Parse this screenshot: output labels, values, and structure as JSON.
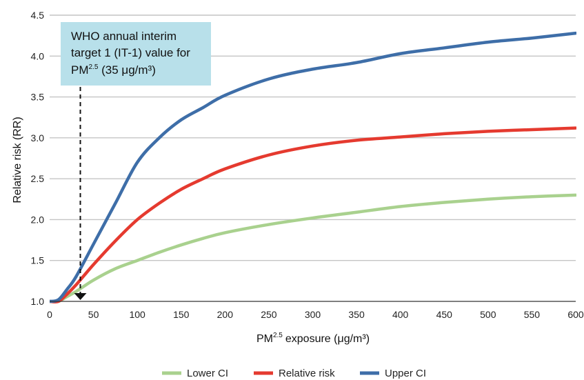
{
  "chart_data": {
    "type": "line",
    "title": "",
    "xlabel": "exposure (μg/m³)",
    "xlabel_prefix": "PM",
    "xlabel_sup": "2.5",
    "ylabel": "Relative risk (RR)",
    "xlim": [
      0,
      600
    ],
    "ylim": [
      1.0,
      4.5
    ],
    "xticks": [
      0,
      50,
      100,
      150,
      200,
      250,
      300,
      350,
      400,
      450,
      500,
      550,
      600
    ],
    "yticks": [
      1.0,
      1.5,
      2.0,
      2.5,
      3.0,
      3.5,
      4.0,
      4.5
    ],
    "xtick_labels": [
      "0",
      "50",
      "100",
      "150",
      "200",
      "250",
      "300",
      "350",
      "400",
      "450",
      "500",
      "550",
      "600"
    ],
    "ytick_labels": [
      "1.0",
      "1.5",
      "2.0",
      "2.5",
      "3.0",
      "3.5",
      "4.0",
      "4.5"
    ],
    "grid": "horizontal",
    "legend_position": "bottom",
    "series": [
      {
        "name": "Lower CI",
        "color": "#a9d18e",
        "x": [
          0,
          10,
          20,
          30,
          50,
          75,
          100,
          125,
          150,
          175,
          200,
          250,
          300,
          350,
          400,
          450,
          500,
          550,
          600
        ],
        "y": [
          1.0,
          1.0,
          1.06,
          1.12,
          1.26,
          1.4,
          1.5,
          1.6,
          1.69,
          1.77,
          1.84,
          1.94,
          2.02,
          2.09,
          2.16,
          2.21,
          2.25,
          2.28,
          2.3
        ]
      },
      {
        "name": "Relative risk",
        "color": "#e53a2f",
        "x": [
          0,
          10,
          20,
          30,
          50,
          75,
          100,
          125,
          150,
          175,
          200,
          250,
          300,
          350,
          400,
          450,
          500,
          550,
          600
        ],
        "y": [
          1.0,
          1.0,
          1.09,
          1.2,
          1.45,
          1.74,
          2.0,
          2.2,
          2.37,
          2.5,
          2.62,
          2.79,
          2.9,
          2.97,
          3.01,
          3.05,
          3.08,
          3.1,
          3.12
        ]
      },
      {
        "name": "Upper CI",
        "color": "#3e6ea8",
        "x": [
          0,
          10,
          20,
          30,
          50,
          75,
          100,
          125,
          150,
          175,
          200,
          250,
          300,
          350,
          400,
          450,
          500,
          550,
          600
        ],
        "y": [
          1.0,
          1.02,
          1.15,
          1.3,
          1.7,
          2.2,
          2.7,
          3.0,
          3.22,
          3.37,
          3.52,
          3.72,
          3.84,
          3.92,
          4.03,
          4.1,
          4.17,
          4.22,
          4.28
        ]
      }
    ],
    "annotation": {
      "line1": "WHO annual interim",
      "line2": "target 1 (IT-1) value for",
      "line3_prefix": "PM",
      "line3_sup": "2.5",
      "line3_suffix": " (35 μg/m³)",
      "x_value": 35,
      "box_color": "#b8e0ea"
    }
  }
}
